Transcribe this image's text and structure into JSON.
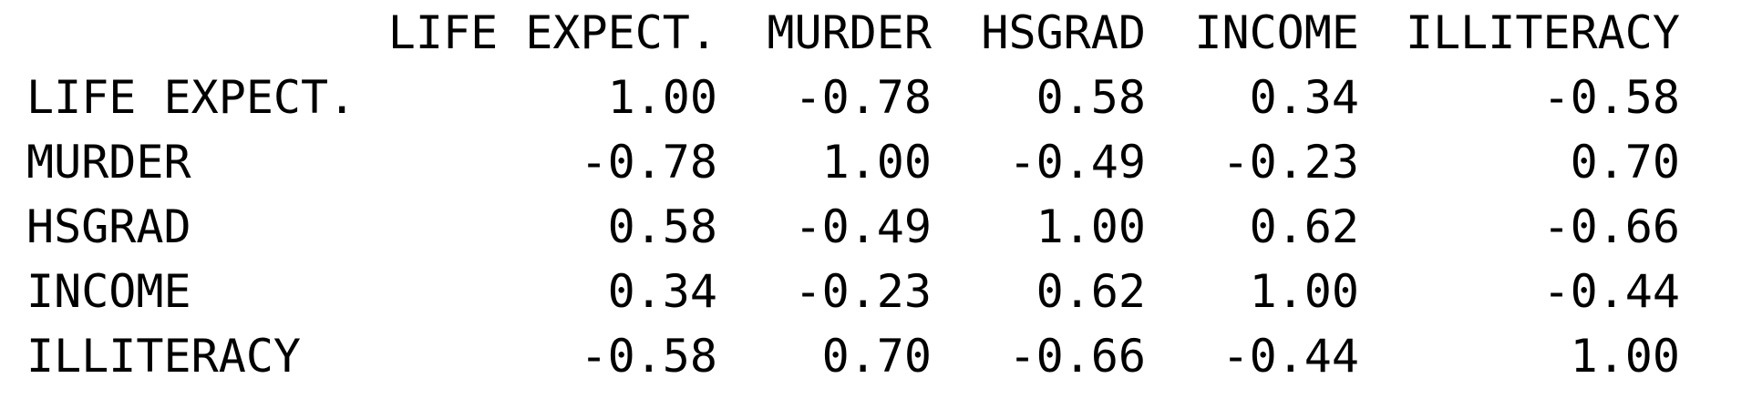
{
  "headers": [
    "LIFE EXPECT.",
    "MURDER",
    "HSGRAD",
    "INCOME",
    "ILLITERACY"
  ],
  "rows": [
    {
      "label": "LIFE EXPECT.",
      "values": [
        "1.00",
        "-0.78",
        "0.58",
        "0.34",
        "-0.58"
      ]
    },
    {
      "label": "MURDER",
      "values": [
        "-0.78",
        "1.00",
        "-0.49",
        "-0.23",
        "0.70"
      ]
    },
    {
      "label": "HSGRAD",
      "values": [
        "0.58",
        "-0.49",
        "1.00",
        "0.62",
        "-0.66"
      ]
    },
    {
      "label": "INCOME",
      "values": [
        "0.34",
        "-0.23",
        "0.62",
        "1.00",
        "-0.44"
      ]
    },
    {
      "label": "ILLITERACY",
      "values": [
        "-0.58",
        "0.70",
        "-0.66",
        "-0.44",
        "1.00"
      ]
    }
  ]
}
